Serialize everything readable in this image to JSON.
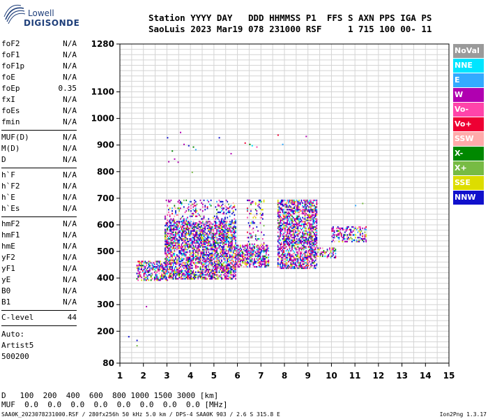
{
  "logo": {
    "line1": "Lowell",
    "line2": "DIGISONDE"
  },
  "header": {
    "line1": "Station YYYY DAY   DDD HHMMSS P1  FFS S AXN PPS IGA PS",
    "line2": "SaoLuis 2023 Mar19 078 231000 RSF     1 715 100 00- 11"
  },
  "params": {
    "group1": [
      {
        "name": "foF2",
        "value": "N/A"
      },
      {
        "name": "foF1",
        "value": "N/A"
      },
      {
        "name": "foF1p",
        "value": "N/A"
      },
      {
        "name": "foE",
        "value": "N/A"
      },
      {
        "name": "foEp",
        "value": "0.35"
      },
      {
        "name": "fxI",
        "value": "N/A"
      },
      {
        "name": "foEs",
        "value": "N/A"
      },
      {
        "name": "fmin",
        "value": "N/A"
      }
    ],
    "group2": [
      {
        "name": "MUF(D)",
        "value": "N/A"
      },
      {
        "name": "M(D)",
        "value": "N/A"
      },
      {
        "name": "D",
        "value": "N/A"
      }
    ],
    "group3": [
      {
        "name": "h`F",
        "value": "N/A"
      },
      {
        "name": "h`F2",
        "value": "N/A"
      },
      {
        "name": "h`E",
        "value": "N/A"
      },
      {
        "name": "h`Es",
        "value": "N/A"
      }
    ],
    "group4": [
      {
        "name": "hmF2",
        "value": "N/A"
      },
      {
        "name": "hmF1",
        "value": "N/A"
      },
      {
        "name": "hmE",
        "value": "N/A"
      },
      {
        "name": "yF2",
        "value": "N/A"
      },
      {
        "name": "yF1",
        "value": "N/A"
      },
      {
        "name": "yE",
        "value": "N/A"
      },
      {
        "name": "B0",
        "value": "N/A"
      },
      {
        "name": "B1",
        "value": "N/A"
      }
    ],
    "group5": [
      {
        "name": "C-level",
        "value": "44"
      }
    ],
    "auto": [
      "Auto:",
      "Artist5",
      "500200"
    ]
  },
  "legend": [
    {
      "label": "NoVal",
      "color": "#9a9a9a"
    },
    {
      "label": "NNE",
      "color": "#00e5ff"
    },
    {
      "label": "E",
      "color": "#33aaff"
    },
    {
      "label": "W",
      "color": "#b000b0"
    },
    {
      "label": "Vo-",
      "color": "#ff44aa"
    },
    {
      "label": "Vo+",
      "color": "#ee0033"
    },
    {
      "label": "SSW",
      "color": "#ffaaaa"
    },
    {
      "label": "X-",
      "color": "#008800"
    },
    {
      "label": "X+",
      "color": "#77bb44"
    },
    {
      "label": "SSE",
      "color": "#dddd00"
    },
    {
      "label": "NNW",
      "color": "#1010cc"
    }
  ],
  "distance": {
    "line1": "D   100  200  400  600  800 1000 1500 3000 [km]",
    "line2": "MUF  0.0  0.0  0.0  0.0  0.0  0.0  0.0  0.0 [MHz]"
  },
  "footer": "SAA0K_2023078231000.RSF / 280fx256h 50 kHz 5.0 km / DPS-4 SAA0K 903 / 2.6 S 315.8 E",
  "version": "Ion2Png 1.3.17",
  "chart_data": {
    "type": "scatter",
    "xlabel": "",
    "ylabel": "",
    "xlim": [
      1,
      15
    ],
    "ylim": [
      80,
      1280
    ],
    "x_ticks": [
      1,
      2,
      3,
      4,
      5,
      6,
      7,
      8,
      9,
      10,
      11,
      12,
      13,
      14,
      15
    ],
    "y_ticks": [
      80,
      200,
      300,
      400,
      500,
      600,
      700,
      800,
      900,
      1000,
      1100,
      1280
    ],
    "grid": true,
    "series_colors_by_legend": true,
    "echo_regions": [
      {
        "x": [
          1.7,
          3.0
        ],
        "y": [
          395,
          470
        ],
        "density": 0.55
      },
      {
        "x": [
          2.9,
          5.9
        ],
        "y": [
          400,
          620
        ],
        "density": 0.65
      },
      {
        "x": [
          2.9,
          5.9
        ],
        "y": [
          620,
          700
        ],
        "density": 0.18
      },
      {
        "x": [
          5.9,
          7.3
        ],
        "y": [
          445,
          530
        ],
        "density": 0.6
      },
      {
        "x": [
          6.4,
          7.1
        ],
        "y": [
          530,
          700
        ],
        "density": 0.2
      },
      {
        "x": [
          7.7,
          9.4
        ],
        "y": [
          440,
          700
        ],
        "density": 0.6
      },
      {
        "x": [
          9.4,
          10.2
        ],
        "y": [
          480,
          520
        ],
        "density": 0.4
      },
      {
        "x": [
          10.0,
          11.5
        ],
        "y": [
          540,
          600
        ],
        "density": 0.35
      }
    ],
    "isolated_points": [
      {
        "x": 1.35,
        "y": 182
      },
      {
        "x": 1.7,
        "y": 168
      },
      {
        "x": 1.7,
        "y": 148
      },
      {
        "x": 2.1,
        "y": 295
      },
      {
        "x": 3.55,
        "y": 950
      },
      {
        "x": 3.0,
        "y": 930
      },
      {
        "x": 3.2,
        "y": 880
      },
      {
        "x": 3.3,
        "y": 850
      },
      {
        "x": 3.05,
        "y": 840
      },
      {
        "x": 3.45,
        "y": 838
      },
      {
        "x": 3.7,
        "y": 905
      },
      {
        "x": 3.9,
        "y": 900
      },
      {
        "x": 4.1,
        "y": 895
      },
      {
        "x": 4.2,
        "y": 885
      },
      {
        "x": 4.05,
        "y": 800
      },
      {
        "x": 5.2,
        "y": 930
      },
      {
        "x": 6.3,
        "y": 910
      },
      {
        "x": 6.5,
        "y": 905
      },
      {
        "x": 6.6,
        "y": 900
      },
      {
        "x": 6.8,
        "y": 895
      },
      {
        "x": 5.7,
        "y": 870
      },
      {
        "x": 7.7,
        "y": 940
      },
      {
        "x": 7.9,
        "y": 905
      },
      {
        "x": 8.9,
        "y": 935
      },
      {
        "x": 11.3,
        "y": 683
      },
      {
        "x": 11.0,
        "y": 675
      }
    ]
  }
}
